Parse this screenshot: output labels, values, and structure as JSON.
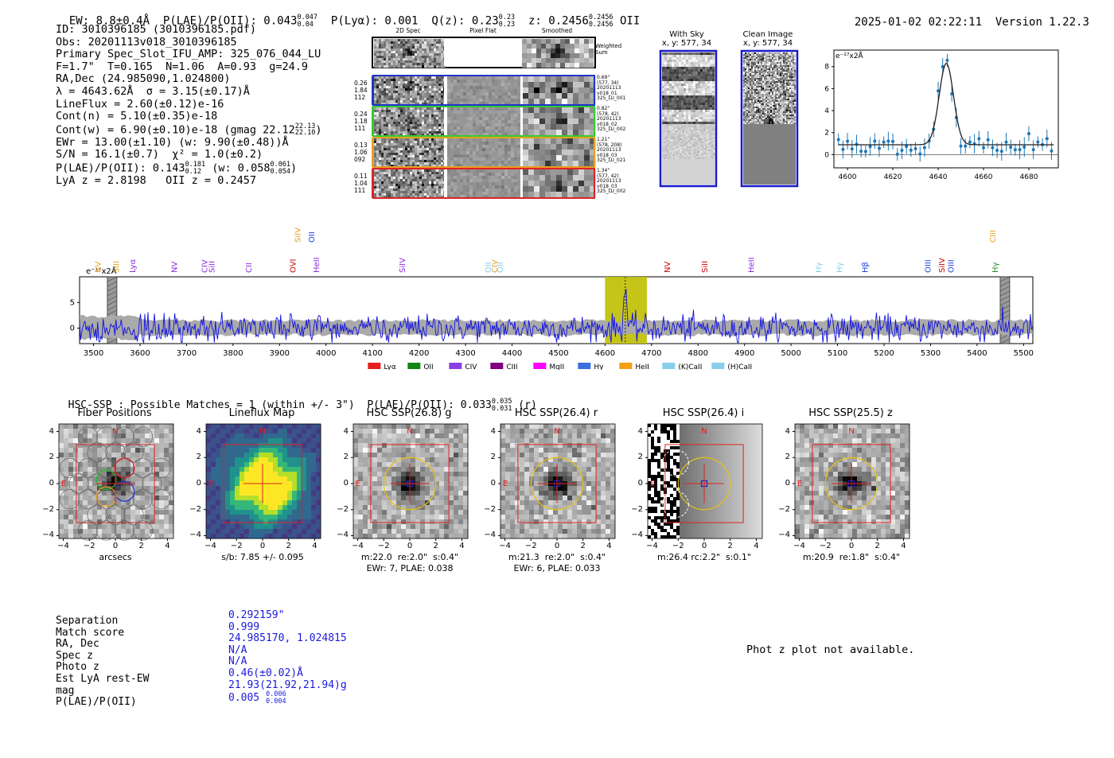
{
  "header": {
    "ew": "EW: 8.8±0.4Å",
    "plae_label": "P(LAE)/P(OII): 0.043",
    "plae_hi": "0.047",
    "plae_lo": "0.04",
    "plya": "P(Lyα): 0.001",
    "q": "Q(z): 0.23",
    "q_hi": "0.23",
    "q_lo": "0.23",
    "z": "z: 0.2456",
    "z_hi": "0.2456",
    "z_lo": "0.2456",
    "line": "OII",
    "timestamp": "2025-01-02 02:22:11",
    "version": "Version 1.22.3"
  },
  "info": {
    "id": "ID: 3010396185 (3010396185.pdf)",
    "obs": "Obs: 20201113v018_3010396185",
    "primary": "Primary Spec_Slot_IFU_AMP: 325_076_044_LU",
    "params": "F=1.7\"  T=0.165  N=1.06  A=0.93  g=24.9",
    "radec": "RA,Dec (24.985090,1.024800)",
    "lambda": "λ = 4643.62Å  σ = 3.15(±0.17)Å",
    "lineflux": "LineFlux = 2.60(±0.12)e-16",
    "contn": "Cont(n) = 5.10(±0.35)e-18",
    "contw": "Cont(w) = 6.90(±0.10)e-18 (gmag 22.12",
    "contw_hi": "22.13",
    "contw_lo": "22.10",
    "contw_end": ")",
    "ewr": "EWr = 13.00(±1.10) (w: 9.90(±0.48))Å",
    "sn": "S/N = 16.1(±0.7)  χ² = 1.0(±0.2)",
    "plae": "P(LAE)/P(OII): 0.143",
    "plae_hi": "0.181",
    "plae_lo": "0.12",
    "plae_w": "(w: 0.058",
    "plae_w_hi": "0.061",
    "plae_w_lo": "0.054",
    "plae_w_end": ")",
    "lyaz": "LyA z = 2.8198   OII z = 0.2457"
  },
  "cutouts": {
    "col_titles": [
      "2D Spec",
      "Pixel Flat",
      "Smoothed"
    ],
    "sum_label": "Weighted Sum",
    "rows": [
      {
        "weights": [
          "0.26",
          "1.84",
          "112"
        ],
        "meta": [
          "0.69\"",
          "(577, 34)",
          "20201113",
          "v018_01",
          "325_LU_001"
        ],
        "color": "#2233cc"
      },
      {
        "weights": [
          "0.24",
          "1.18",
          "111"
        ],
        "meta": [
          "0.82\"",
          "(578, 42)",
          "20201113",
          "v018_02",
          "325_LU_002"
        ],
        "color": "#33cc33"
      },
      {
        "weights": [
          "0.13",
          "1.06",
          "092"
        ],
        "meta": [
          "1.21\"",
          "(578, 208)",
          "20201113",
          "v018_03",
          "325_LU_021"
        ],
        "color": "#e8a020"
      },
      {
        "weights": [
          "0.11",
          "1.04",
          "111"
        ],
        "meta": [
          "1.34\"",
          "(577, 42)",
          "20201113",
          "v018_03",
          "325_LU_002"
        ],
        "color": "#dd2222"
      }
    ]
  },
  "sky_panels": [
    {
      "title": "With Sky",
      "coords": "x, y: 577, 34"
    },
    {
      "title": "Clean Image",
      "coords": "x, y: 577, 34"
    }
  ],
  "fit_plot": {
    "unit": "e⁻¹⁷x2Å",
    "chart_data": {
      "type": "scatter",
      "title": "",
      "xlabel": "",
      "ylabel": "e⁻¹⁷x2Å",
      "xlim": [
        4594,
        4693
      ],
      "ylim": [
        -1.2,
        9.5
      ],
      "xticks": [
        4600,
        4620,
        4640,
        4660,
        4680
      ],
      "yticks": [
        0,
        2,
        4,
        6,
        8
      ],
      "model_center": 4643.6,
      "model_sigma": 3.15,
      "model_amp": 7.4,
      "model_cont": 0.9
    }
  },
  "spectrum": {
    "unit": "e⁻¹⁷x2Å",
    "chart_data": {
      "type": "line",
      "xlim": [
        3470,
        5520
      ],
      "ylim": [
        -3,
        10
      ],
      "xticks": [
        3500,
        3600,
        3700,
        3800,
        3900,
        4000,
        4100,
        4200,
        4300,
        4400,
        4500,
        4600,
        4700,
        4800,
        4900,
        5000,
        5100,
        5200,
        5300,
        5400,
        5500
      ],
      "yticks": [
        0,
        5
      ],
      "highlight_range": [
        4600,
        4690
      ],
      "emission_peak": 4643.6,
      "masked": [
        3540,
        5460
      ]
    },
    "line_labels": [
      {
        "text": "NV",
        "x": 3515,
        "color": "#e8a020",
        "row": 1
      },
      {
        "text": "SiII",
        "x": 3555,
        "color": "#e8a020",
        "row": 1
      },
      {
        "text": "Lyα",
        "x": 3590,
        "color": "#8a2be2",
        "row": 1
      },
      {
        "text": "NV",
        "x": 3680,
        "color": "#8a2be2",
        "row": 1
      },
      {
        "text": "CIV",
        "x": 3745,
        "color": "#8a2be2",
        "row": 1
      },
      {
        "text": "SiII",
        "x": 3760,
        "color": "#8a2be2",
        "row": 1
      },
      {
        "text": "CII",
        "x": 3840,
        "color": "#8a2be2",
        "row": 1
      },
      {
        "text": "OVI",
        "x": 3935,
        "color": "#cc0000",
        "row": 1
      },
      {
        "text": "SiIV",
        "x": 3945,
        "color": "#e8a020",
        "row": 0
      },
      {
        "text": "OII",
        "x": 3975,
        "color": "#1a40dd",
        "row": 0
      },
      {
        "text": "HeII",
        "x": 3985,
        "color": "#8a2be2",
        "row": 1
      },
      {
        "text": "SiIV",
        "x": 4170,
        "color": "#8a2be2",
        "row": 1
      },
      {
        "text": "OII",
        "x": 4355,
        "color": "#87ceeb",
        "row": 1
      },
      {
        "text": "CIV",
        "x": 4368,
        "color": "#e8a020",
        "row": 1
      },
      {
        "text": "OII",
        "x": 4380,
        "color": "#87ceeb",
        "row": 1
      },
      {
        "text": "NV",
        "x": 4740,
        "color": "#cc0000",
        "row": 1
      },
      {
        "text": "SiII",
        "x": 4820,
        "color": "#cc0000",
        "row": 1
      },
      {
        "text": "HeII",
        "x": 4920,
        "color": "#8a2be2",
        "row": 1
      },
      {
        "text": "Hγ",
        "x": 5065,
        "color": "#87ceeb",
        "row": 1
      },
      {
        "text": "Hγ",
        "x": 5110,
        "color": "#87ceeb",
        "row": 1
      },
      {
        "text": "Hβ",
        "x": 5165,
        "color": "#1a40dd",
        "row": 1
      },
      {
        "text": "OIII",
        "x": 5300,
        "color": "#1a40dd",
        "row": 1
      },
      {
        "text": "SiIV",
        "x": 5330,
        "color": "#cc0000",
        "row": 1
      },
      {
        "text": "OIII",
        "x": 5350,
        "color": "#1a40dd",
        "row": 1
      },
      {
        "text": "CIII",
        "x": 5440,
        "color": "#e8a020",
        "row": 0
      },
      {
        "text": "Hγ",
        "x": 5445,
        "color": "#228b22",
        "row": 1
      }
    ],
    "legend": [
      {
        "label": "Lyα",
        "color": "#e51f1f"
      },
      {
        "label": "OII",
        "color": "#118811"
      },
      {
        "label": "CIV",
        "color": "#8a3fe6"
      },
      {
        "label": "CIII",
        "color": "#800080"
      },
      {
        "label": "MgII",
        "color": "#ff00ff"
      },
      {
        "label": "Hγ",
        "color": "#3a6fe0"
      },
      {
        "label": "HeII",
        "color": "#f5a011"
      },
      {
        "label": "(K)CaII",
        "color": "#87ceeb"
      },
      {
        "label": "(H)CaII",
        "color": "#87ceeb"
      }
    ]
  },
  "hsc": {
    "headline": "HSC-SSP : Possible Matches = 1 (within +/- 3\")  P(LAE)/P(OII): 0.033",
    "headline_hi": "0.035",
    "headline_lo": "0.031",
    "headline_end": "(r)",
    "axis_ticks": [
      "−4",
      "−2",
      "0",
      "2",
      "4"
    ],
    "y_ticks": [
      "4",
      "2",
      "0",
      "−2",
      "−4"
    ],
    "panels": [
      {
        "title": "Fiber Positions",
        "caption1": "arcsecs",
        "caption2": ""
      },
      {
        "title": "Lineflux Map",
        "caption1": "s/b: 7.85 +/- 0.095",
        "caption2": ""
      },
      {
        "title": "HSC SSP(26.8) g",
        "caption1": "m:22.0  re:2.0\"  s:0.4\"",
        "caption2": "EWr: 7, PLAE: 0.038"
      },
      {
        "title": "HSC SSP(26.4) r",
        "caption1": "m:21.3  re:2.0\"  s:0.4\"",
        "caption2": "EWr: 6, PLAE: 0.033"
      },
      {
        "title": "HSC SSP(26.4) i",
        "caption1": "m:26.4 rc:2.2\"  s:0.1\"",
        "caption2": ""
      },
      {
        "title": "HSC SSP(25.5) z",
        "caption1": "m:20.9  re:1.8\"  s:0.4\"",
        "caption2": ""
      }
    ],
    "n_label": "N",
    "e_label": "E"
  },
  "match_table": {
    "labels": [
      "Separation",
      "Match score",
      "RA, Dec",
      "Spec z",
      "Photo z",
      "Est LyA rest-EW",
      "mag",
      "P(LAE)/P(OII)"
    ],
    "values": [
      "0.292159\"",
      "0.999",
      "24.985170, 1.024815",
      "N/A",
      "N/A",
      "0.46(±0.02)Å",
      "21.93(21.92,21.94)g",
      "0.005"
    ],
    "plae_hi": "0.006",
    "plae_lo": "0.004"
  },
  "photz_note": "Phot z plot not available."
}
